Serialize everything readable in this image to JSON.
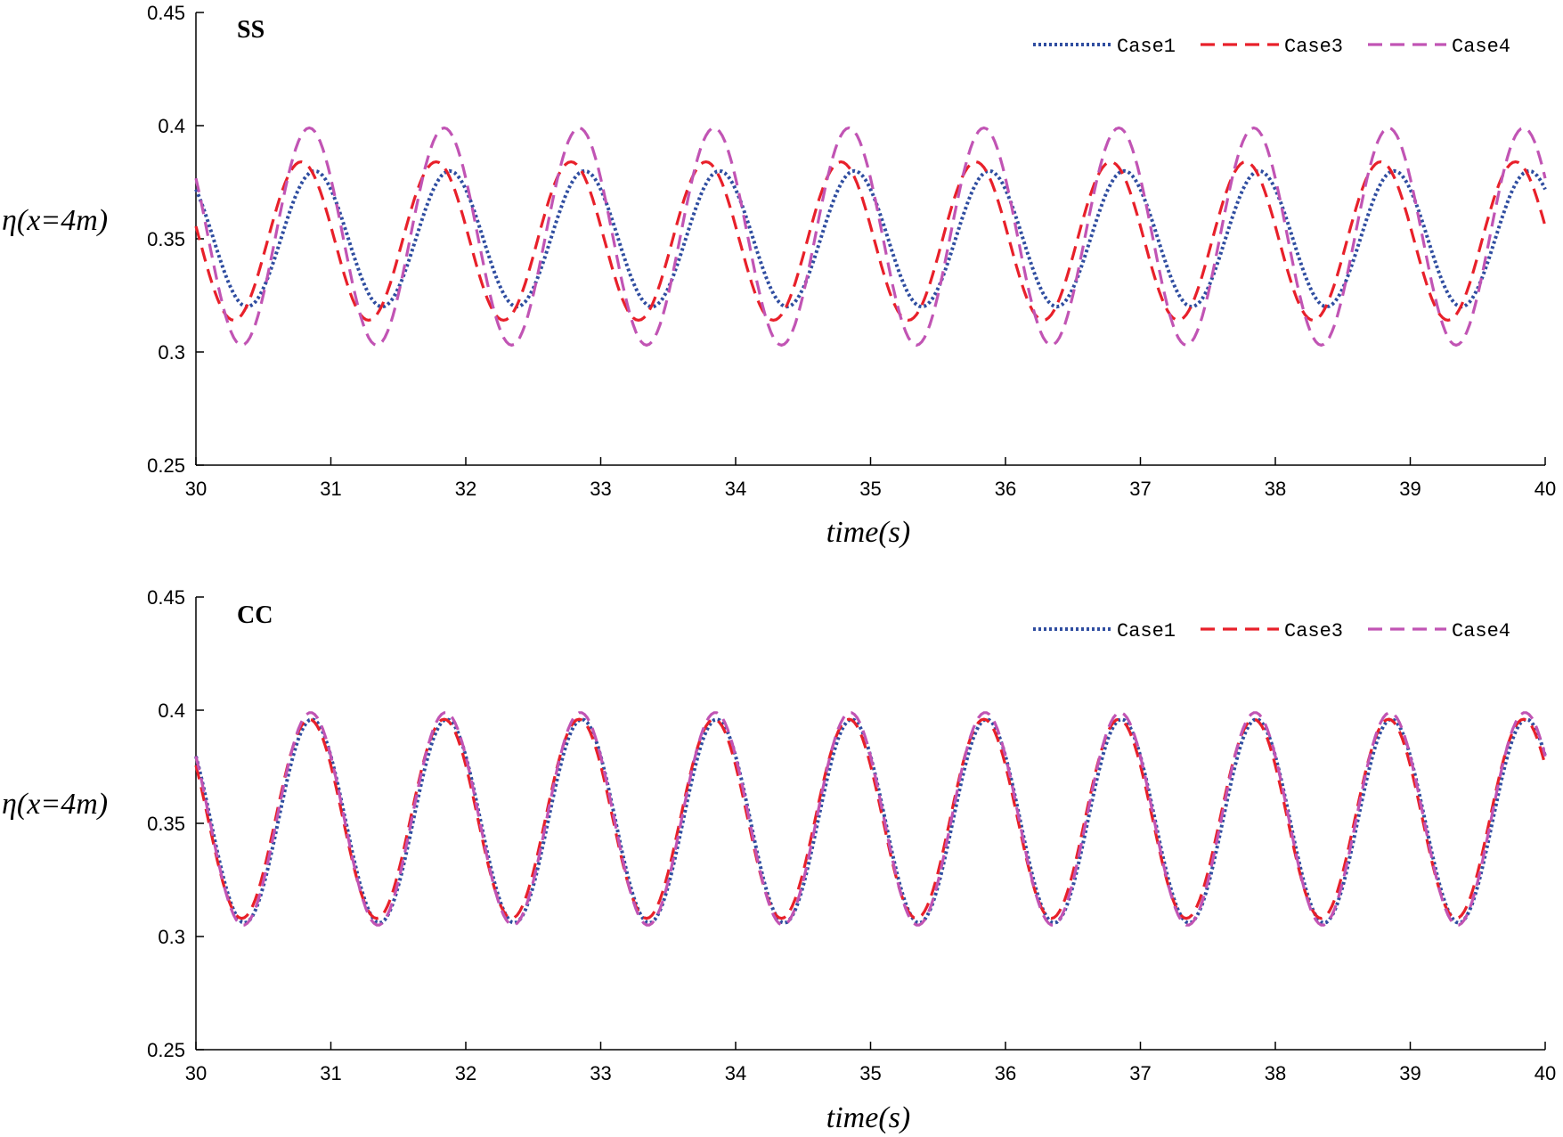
{
  "chart_data": [
    {
      "type": "line",
      "title": "SS",
      "xlabel": "time(s)",
      "ylabel": "η(x=4m)",
      "xlim": [
        30,
        40
      ],
      "ylim": [
        0.25,
        0.45
      ],
      "xticks": [
        30,
        31,
        32,
        33,
        34,
        35,
        36,
        37,
        38,
        39,
        40
      ],
      "yticks": [
        0.25,
        0.3,
        0.35,
        0.4,
        0.45
      ],
      "xtick_labels": [
        "30",
        "31",
        "32",
        "33",
        "34",
        "35",
        "36",
        "37",
        "38",
        "39",
        "40"
      ],
      "ytick_labels": [
        "0.25",
        "0.3",
        "0.35",
        "0.4",
        "0.45"
      ],
      "legend_position": "top-right",
      "series": [
        {
          "name": "Case1",
          "style": "dotted",
          "color": "#2f4da0",
          "period": 1.0,
          "mean": 0.35,
          "amplitude": 0.03,
          "peak_times": [
            30.88,
            31.88,
            32.88,
            33.88,
            34.88,
            35.88,
            36.88,
            37.88,
            38.88,
            39.88
          ]
        },
        {
          "name": "Case3",
          "style": "dashed",
          "color": "#e8202a",
          "period": 1.0,
          "mean": 0.349,
          "amplitude": 0.035,
          "peak_times": [
            30.78,
            31.78,
            32.78,
            33.78,
            34.78,
            35.78,
            36.78,
            37.78,
            38.78,
            39.78
          ]
        },
        {
          "name": "Case4",
          "style": "dashed",
          "color": "#c154b4",
          "period": 1.0,
          "mean": 0.351,
          "amplitude": 0.048,
          "peak_times": [
            30.84,
            31.84,
            32.84,
            33.84,
            34.84,
            35.84,
            36.84,
            37.84,
            38.84,
            39.84
          ]
        }
      ]
    },
    {
      "type": "line",
      "title": "CC",
      "xlabel": "time(s)",
      "ylabel": "η(x=4m)",
      "xlim": [
        30,
        40
      ],
      "ylim": [
        0.25,
        0.45
      ],
      "xticks": [
        30,
        31,
        32,
        33,
        34,
        35,
        36,
        37,
        38,
        39,
        40
      ],
      "yticks": [
        0.25,
        0.3,
        0.35,
        0.4,
        0.45
      ],
      "xtick_labels": [
        "30",
        "31",
        "32",
        "33",
        "34",
        "35",
        "36",
        "37",
        "38",
        "39",
        "40"
      ],
      "ytick_labels": [
        "0.25",
        "0.3",
        "0.35",
        "0.4",
        "0.45"
      ],
      "legend_position": "top-right",
      "series": [
        {
          "name": "Case1",
          "style": "dotted",
          "color": "#2f4da0",
          "period": 1.0,
          "mean": 0.351,
          "amplitude": 0.045,
          "peak_times": [
            30.86,
            31.86,
            32.86,
            33.86,
            34.86,
            35.86,
            36.86,
            37.86,
            38.86,
            39.86
          ]
        },
        {
          "name": "Case3",
          "style": "dashed",
          "color": "#e8202a",
          "period": 1.0,
          "mean": 0.352,
          "amplitude": 0.044,
          "peak_times": [
            30.84,
            31.84,
            32.84,
            33.84,
            34.84,
            35.84,
            36.84,
            37.84,
            38.84,
            39.84
          ]
        },
        {
          "name": "Case4",
          "style": "dashed",
          "color": "#c154b4",
          "period": 1.0,
          "mean": 0.352,
          "amplitude": 0.047,
          "peak_times": [
            30.85,
            31.85,
            32.85,
            33.85,
            34.85,
            35.85,
            36.85,
            37.85,
            38.85,
            39.85
          ]
        }
      ]
    }
  ]
}
